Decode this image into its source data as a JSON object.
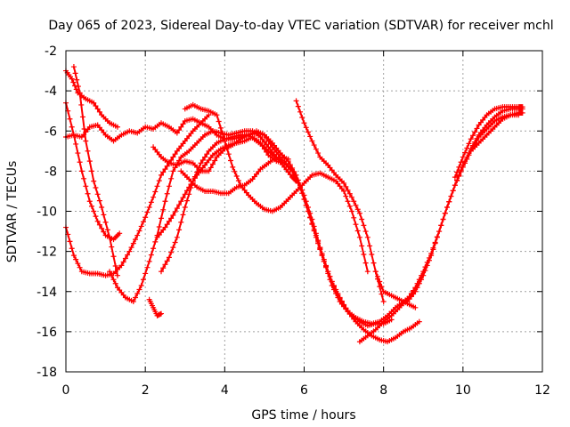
{
  "chart_data": {
    "type": "scatter",
    "title": "Day 065 of 2023, Sidereal Day-to-day VTEC variation (SDTVAR) for receiver mchl",
    "xlabel": "GPS time / hours",
    "ylabel": "SDTVAR / TECUs",
    "xlim": [
      0,
      12
    ],
    "ylim": [
      -18,
      -2
    ],
    "xticks": [
      0,
      2,
      4,
      6,
      8,
      10,
      12
    ],
    "yticks": [
      -18,
      -16,
      -14,
      -12,
      -10,
      -8,
      -6,
      -4,
      -2
    ],
    "xtick_labels": [
      "0",
      "2",
      "4",
      "6",
      "8",
      "10",
      "12"
    ],
    "ytick_labels": [
      "-18",
      "-16",
      "-14",
      "-12",
      "-10",
      "-8",
      "-6",
      "-4",
      "-2"
    ],
    "grid": true,
    "marker": "+",
    "color": "#ff0000",
    "series": [
      {
        "name": "s1",
        "x": [
          0.0,
          0.2,
          0.4,
          0.6,
          0.8,
          1.0,
          1.2,
          1.4,
          1.6,
          1.8,
          2.0,
          2.2,
          2.4,
          2.6,
          2.8,
          3.0,
          3.2,
          3.4,
          3.6,
          3.8,
          4.0,
          4.2,
          4.4,
          4.6,
          4.8,
          5.0,
          5.2,
          5.4
        ],
        "y": [
          -6.3,
          -6.2,
          -6.3,
          -5.8,
          -5.7,
          -6.2,
          -6.5,
          -6.2,
          -6.0,
          -6.1,
          -5.8,
          -5.9,
          -5.6,
          -5.8,
          -6.1,
          -5.5,
          -5.4,
          -5.6,
          -5.8,
          -6.2,
          -6.4,
          -6.4,
          -6.3,
          -6.2,
          -6.5,
          -6.8,
          -7.2,
          -7.5
        ]
      },
      {
        "name": "s2",
        "x": [
          0.0,
          0.15,
          0.3,
          0.5,
          0.7,
          0.9,
          1.1,
          1.3
        ],
        "y": [
          -3.0,
          -3.4,
          -4.1,
          -4.4,
          -4.6,
          -5.2,
          -5.6,
          -5.8
        ]
      },
      {
        "name": "s3",
        "x": [
          0.2,
          0.35,
          0.5,
          0.7,
          0.9,
          1.1,
          1.3
        ],
        "y": [
          -2.8,
          -4.1,
          -6.5,
          -8.5,
          -9.8,
          -11.3,
          -13.2
        ]
      },
      {
        "name": "s4",
        "x": [
          0.0,
          0.2,
          0.4,
          0.6,
          0.8,
          1.0,
          1.2,
          1.35
        ],
        "y": [
          -4.6,
          -6.2,
          -8.0,
          -9.5,
          -10.5,
          -11.2,
          -11.4,
          -11.1
        ]
      },
      {
        "name": "s5",
        "x": [
          0.0,
          0.2,
          0.4,
          0.6,
          0.8,
          1.0,
          1.2,
          1.4,
          1.6,
          1.8,
          2.0,
          2.2,
          2.4,
          2.6,
          2.8,
          3.0,
          3.2,
          3.4,
          3.6
        ],
        "y": [
          -10.8,
          -12.2,
          -13.0,
          -13.1,
          -13.1,
          -13.2,
          -13.1,
          -12.7,
          -12.0,
          -11.2,
          -10.3,
          -9.3,
          -8.2,
          -7.6,
          -7.0,
          -6.5,
          -6.0,
          -5.6,
          -5.2
        ]
      },
      {
        "name": "s6",
        "x": [
          1.1,
          1.3,
          1.5,
          1.7,
          1.9,
          2.1,
          2.3,
          2.5,
          2.7,
          2.9,
          3.1,
          3.3,
          3.5,
          3.7,
          3.9,
          4.1,
          4.3,
          4.5,
          4.7,
          4.9,
          5.1,
          5.3,
          5.5,
          5.7,
          5.8
        ],
        "y": [
          -13.0,
          -13.8,
          -14.3,
          -14.5,
          -13.7,
          -12.5,
          -11.2,
          -9.5,
          -8.0,
          -7.3,
          -7.0,
          -6.6,
          -6.2,
          -6.0,
          -6.1,
          -6.2,
          -6.1,
          -6.0,
          -6.0,
          -6.3,
          -6.8,
          -7.3,
          -7.8,
          -8.3,
          -8.5
        ]
      },
      {
        "name": "s7",
        "x": [
          2.1,
          2.2,
          2.3,
          2.4
        ],
        "y": [
          -14.4,
          -14.8,
          -15.2,
          -15.1
        ]
      },
      {
        "name": "s8",
        "x": [
          2.2,
          2.4,
          2.6,
          2.8,
          3.0,
          3.2,
          3.4,
          3.6,
          3.8,
          4.0,
          4.2,
          4.4,
          4.6,
          4.8,
          5.0,
          5.2,
          5.4,
          5.6,
          5.8,
          6.0,
          6.2,
          6.4,
          6.6,
          6.8,
          7.0,
          7.2,
          7.4,
          7.6,
          7.8,
          8.0,
          8.2
        ],
        "y": [
          -6.8,
          -7.3,
          -7.6,
          -7.7,
          -7.5,
          -7.6,
          -8.0,
          -8.0,
          -7.3,
          -6.9,
          -6.7,
          -6.4,
          -6.2,
          -6.0,
          -6.2,
          -6.6,
          -7.1,
          -7.5,
          -8.2,
          -9.2,
          -10.4,
          -11.8,
          -13.0,
          -14.0,
          -14.7,
          -15.2,
          -15.5,
          -15.7,
          -15.6,
          -15.6,
          -15.4
        ]
      },
      {
        "name": "s9",
        "x": [
          2.3,
          2.5,
          2.7,
          2.9,
          3.1,
          3.3,
          3.5,
          3.7,
          3.9,
          4.1,
          4.3,
          4.5,
          4.7,
          4.9,
          5.1,
          5.3,
          5.5,
          5.7,
          5.9,
          6.1,
          6.3,
          6.5,
          6.7,
          6.9,
          7.1,
          7.3,
          7.5,
          7.7,
          7.9,
          8.1,
          8.3,
          8.5,
          8.7,
          8.9
        ],
        "y": [
          -11.3,
          -10.8,
          -10.2,
          -9.5,
          -8.8,
          -8.2,
          -7.7,
          -7.2,
          -6.9,
          -6.7,
          -6.6,
          -6.5,
          -6.3,
          -6.6,
          -7.2,
          -7.5,
          -7.6,
          -8.0,
          -8.8,
          -10.0,
          -11.3,
          -12.5,
          -13.5,
          -14.3,
          -15.0,
          -15.5,
          -15.9,
          -16.2,
          -16.4,
          -16.5,
          -16.3,
          -16.0,
          -15.8,
          -15.5
        ]
      },
      {
        "name": "s10",
        "x": [
          2.4,
          2.6,
          2.8,
          3.0,
          3.2,
          3.4,
          3.6,
          3.8,
          4.0,
          4.2,
          4.4,
          4.6,
          4.8,
          5.0,
          5.2,
          5.4,
          5.6
        ],
        "y": [
          -13.0,
          -12.3,
          -11.3,
          -9.8,
          -8.5,
          -7.6,
          -7.0,
          -6.6,
          -6.4,
          -6.3,
          -6.2,
          -6.2,
          -6.1,
          -6.2,
          -6.8,
          -7.3,
          -7.4
        ]
      },
      {
        "name": "s11",
        "x": [
          2.9,
          3.1,
          3.3,
          3.5,
          3.7,
          3.9,
          4.1,
          4.3,
          4.5,
          4.7,
          4.9,
          5.1,
          5.3,
          5.5,
          5.7,
          5.9,
          6.1,
          6.3,
          6.5,
          6.7,
          6.9,
          7.1,
          7.3,
          7.5,
          7.7,
          7.9,
          8.1,
          8.3,
          8.5,
          8.7
        ],
        "y": [
          -8.0,
          -8.4,
          -8.8,
          -9.0,
          -9.0,
          -9.1,
          -9.1,
          -8.8,
          -8.7,
          -8.4,
          -7.9,
          -7.6,
          -7.3,
          -7.5,
          -8.0,
          -8.8,
          -10.0,
          -11.2,
          -12.5,
          -13.7,
          -14.5,
          -15.0,
          -15.3,
          -15.5,
          -15.6,
          -15.5,
          -15.2,
          -14.8,
          -14.5,
          -14.2
        ]
      },
      {
        "name": "s12",
        "x": [
          3.0,
          3.2,
          3.4,
          3.6,
          3.8,
          4.0,
          4.2,
          4.4,
          4.6,
          4.8,
          5.0,
          5.2,
          5.4,
          5.6,
          5.8,
          6.0,
          6.2,
          6.4,
          6.6,
          6.8,
          7.0,
          7.2,
          7.4,
          7.6
        ],
        "y": [
          -4.9,
          -4.7,
          -4.9,
          -5.0,
          -5.2,
          -6.5,
          -7.8,
          -8.7,
          -9.2,
          -9.6,
          -9.9,
          -10.0,
          -9.8,
          -9.4,
          -9.0,
          -8.6,
          -8.2,
          -8.1,
          -8.3,
          -8.5,
          -9.0,
          -10.0,
          -11.3,
          -13.0
        ]
      },
      {
        "name": "s13",
        "x": [
          5.8,
          6.0,
          6.2,
          6.4,
          6.6,
          6.8,
          7.0,
          7.2,
          7.4,
          7.6,
          7.8,
          8.0
        ],
        "y": [
          -4.5,
          -5.6,
          -6.5,
          -7.3,
          -7.7,
          -8.2,
          -8.6,
          -9.3,
          -10.1,
          -11.3,
          -13.0,
          -14.5
        ]
      },
      {
        "name": "s14",
        "x": [
          7.8,
          8.0,
          8.2,
          8.4,
          8.6,
          8.8
        ],
        "y": [
          -13.0,
          -14.0,
          -14.2,
          -14.4,
          -14.6,
          -14.8
        ]
      },
      {
        "name": "s15",
        "x": [
          7.4,
          7.6,
          7.8,
          8.0,
          8.2,
          8.4,
          8.6,
          8.8,
          9.0,
          9.2,
          9.4,
          9.6,
          9.8,
          10.0,
          10.2,
          10.4,
          10.6,
          10.8,
          11.0,
          11.2,
          11.4,
          11.5
        ],
        "y": [
          -16.5,
          -16.2,
          -15.9,
          -15.5,
          -15.2,
          -14.8,
          -14.4,
          -13.8,
          -13.0,
          -12.1,
          -11.0,
          -9.8,
          -8.7,
          -7.8,
          -7.0,
          -6.3,
          -5.9,
          -5.5,
          -5.3,
          -5.2,
          -5.1,
          -5.1
        ]
      },
      {
        "name": "s16",
        "x": [
          8.6,
          8.8,
          9.0,
          9.2,
          9.4,
          9.6,
          9.8,
          10.0,
          10.2,
          10.4,
          10.6,
          10.8,
          11.0,
          11.2,
          11.4,
          11.5
        ],
        "y": [
          -14.5,
          -14.0,
          -13.2,
          -12.2,
          -11.0,
          -9.8,
          -8.7,
          -7.7,
          -6.9,
          -6.2,
          -5.7,
          -5.3,
          -5.0,
          -4.9,
          -4.9,
          -4.9
        ]
      },
      {
        "name": "s17",
        "x": [
          9.8,
          10.0,
          10.2,
          10.4,
          10.6,
          10.8,
          11.0,
          11.2,
          11.4,
          11.5
        ],
        "y": [
          -8.3,
          -7.3,
          -6.4,
          -5.7,
          -5.2,
          -4.9,
          -4.8,
          -4.8,
          -4.8,
          -4.8
        ]
      },
      {
        "name": "s18",
        "x": [
          10.2,
          10.4,
          10.6,
          10.8,
          11.0,
          11.2,
          11.4
        ],
        "y": [
          -7.0,
          -6.6,
          -6.2,
          -5.8,
          -5.4,
          -5.2,
          -5.2
        ]
      }
    ]
  }
}
